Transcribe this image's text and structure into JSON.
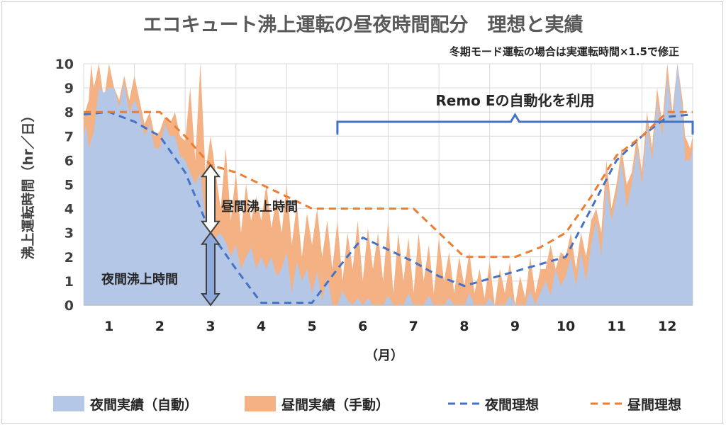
{
  "chart_data": {
    "type": "area",
    "title": "エコキュート沸上運転の昼夜時間配分　理想と実績",
    "note": "冬期モード運転の場合は実運転時間×1.5で修正",
    "ylabel": "沸上運転時間（hr／日）",
    "xlabel": "（月）",
    "ylim": [
      0,
      10
    ],
    "yticks": [
      "0",
      "1",
      "2",
      "3",
      "4",
      "5",
      "6",
      "7",
      "8",
      "9",
      "10"
    ],
    "xlim": [
      0.5,
      12.5
    ],
    "categories": [
      "1",
      "2",
      "3",
      "4",
      "5",
      "6",
      "7",
      "8",
      "9",
      "10",
      "11",
      "12"
    ],
    "annotations": {
      "remo": "Remo Eの自動化を利用",
      "remo_range": [
        5.5,
        12.5
      ],
      "day_arrow": "昼間沸上時間",
      "night_arrow": "夜間沸上時間",
      "day_arrow_range": [
        3,
        5.8
      ],
      "night_arrow_range": [
        0,
        3
      ]
    },
    "series": [
      {
        "name": "夜間実績（自動）",
        "kind": "area",
        "color": "#b4c7e7",
        "points": [
          [
            0.5,
            7
          ],
          [
            0.55,
            7.5
          ],
          [
            0.6,
            6.5
          ],
          [
            0.7,
            7.2
          ],
          [
            0.8,
            9
          ],
          [
            0.9,
            8.8
          ],
          [
            1,
            9
          ],
          [
            1.1,
            9
          ],
          [
            1.2,
            8.2
          ],
          [
            1.3,
            9.2
          ],
          [
            1.4,
            8
          ],
          [
            1.5,
            8.5
          ],
          [
            1.6,
            8
          ],
          [
            1.7,
            7
          ],
          [
            1.8,
            7.5
          ],
          [
            1.9,
            6.5
          ],
          [
            2,
            6.5
          ],
          [
            2.1,
            7.5
          ],
          [
            2.2,
            7
          ],
          [
            2.3,
            7
          ],
          [
            2.4,
            6.2
          ],
          [
            2.5,
            6
          ],
          [
            2.6,
            5.5
          ],
          [
            2.7,
            5
          ],
          [
            2.8,
            5.5
          ],
          [
            2.9,
            3.5
          ],
          [
            3,
            3
          ],
          [
            3.1,
            2.8
          ],
          [
            3.2,
            3
          ],
          [
            3.3,
            2.6
          ],
          [
            3.4,
            2
          ],
          [
            3.5,
            2.5
          ],
          [
            3.6,
            1.5
          ],
          [
            3.7,
            2
          ],
          [
            3.8,
            2.4
          ],
          [
            3.9,
            1.5
          ],
          [
            4,
            2
          ],
          [
            4.1,
            1.5
          ],
          [
            4.2,
            2
          ],
          [
            4.3,
            1.2
          ],
          [
            4.4,
            1.5
          ],
          [
            4.5,
            2.2
          ],
          [
            4.6,
            0.5
          ],
          [
            4.7,
            1.8
          ],
          [
            4.8,
            1
          ],
          [
            4.9,
            1.5
          ],
          [
            5,
            0.5
          ],
          [
            5.1,
            1.4
          ],
          [
            5.2,
            0.2
          ],
          [
            5.3,
            1.2
          ],
          [
            5.4,
            0
          ],
          [
            5.5,
            0
          ],
          [
            5.6,
            0.6
          ],
          [
            5.7,
            0.2
          ],
          [
            5.8,
            0
          ],
          [
            5.9,
            0.3
          ],
          [
            6,
            0
          ],
          [
            6.1,
            0.3
          ],
          [
            6.2,
            0
          ],
          [
            6.4,
            0
          ],
          [
            6.5,
            0.4
          ],
          [
            6.6,
            0
          ],
          [
            6.8,
            0
          ],
          [
            6.9,
            0.5
          ],
          [
            7,
            0
          ],
          [
            7.2,
            0
          ],
          [
            7.3,
            0.4
          ],
          [
            7.4,
            0
          ],
          [
            7.6,
            0
          ],
          [
            7.7,
            0.3
          ],
          [
            7.8,
            0
          ],
          [
            8,
            0
          ],
          [
            8.1,
            0.5
          ],
          [
            8.2,
            0
          ],
          [
            8.4,
            0
          ],
          [
            8.5,
            0.3
          ],
          [
            8.6,
            0
          ],
          [
            8.8,
            0
          ],
          [
            8.9,
            0.4
          ],
          [
            9,
            0
          ],
          [
            9.2,
            0
          ],
          [
            9.3,
            0.6
          ],
          [
            9.4,
            0
          ],
          [
            9.6,
            1
          ],
          [
            9.7,
            0.4
          ],
          [
            9.8,
            1.5
          ],
          [
            9.9,
            0.8
          ],
          [
            10,
            1.2
          ],
          [
            10.1,
            2
          ],
          [
            10.2,
            0.8
          ],
          [
            10.3,
            2.2
          ],
          [
            10.4,
            1
          ],
          [
            10.5,
            2.5
          ],
          [
            10.6,
            3.5
          ],
          [
            10.7,
            2
          ],
          [
            10.8,
            5
          ],
          [
            10.9,
            3.5
          ],
          [
            11,
            4.5
          ],
          [
            11.1,
            6
          ],
          [
            11.2,
            4
          ],
          [
            11.3,
            5
          ],
          [
            11.4,
            6.5
          ],
          [
            11.5,
            5
          ],
          [
            11.6,
            7.5
          ],
          [
            11.7,
            6
          ],
          [
            11.8,
            8.5
          ],
          [
            11.9,
            7
          ],
          [
            12,
            9.5
          ],
          [
            12.1,
            7.5
          ],
          [
            12.2,
            10
          ],
          [
            12.3,
            8
          ],
          [
            12.35,
            6
          ],
          [
            12.45,
            6
          ],
          [
            12.5,
            6.5
          ]
        ]
      },
      {
        "name": "昼間実績（手動）",
        "kind": "area",
        "color": "#f4b183",
        "points": [
          [
            0.5,
            7.8
          ],
          [
            0.6,
            8.5
          ],
          [
            0.65,
            10
          ],
          [
            0.7,
            9
          ],
          [
            0.8,
            10
          ],
          [
            0.9,
            8.5
          ],
          [
            1,
            10
          ],
          [
            1.1,
            9
          ],
          [
            1.2,
            8.5
          ],
          [
            1.3,
            9.5
          ],
          [
            1.4,
            8.5
          ],
          [
            1.5,
            9.5
          ],
          [
            1.6,
            8.5
          ],
          [
            1.7,
            7.5
          ],
          [
            1.8,
            8
          ],
          [
            1.9,
            7
          ],
          [
            2,
            7.2
          ],
          [
            2.1,
            7.8
          ],
          [
            2.2,
            7.5
          ],
          [
            2.3,
            8
          ],
          [
            2.4,
            7
          ],
          [
            2.5,
            6.8
          ],
          [
            2.6,
            9
          ],
          [
            2.7,
            6
          ],
          [
            2.8,
            10
          ],
          [
            2.9,
            5.5
          ],
          [
            3,
            7
          ],
          [
            3.1,
            5.5
          ],
          [
            3.2,
            4
          ],
          [
            3.3,
            6.5
          ],
          [
            3.4,
            3.5
          ],
          [
            3.5,
            5.5
          ],
          [
            3.6,
            3
          ],
          [
            3.7,
            5
          ],
          [
            3.8,
            3.5
          ],
          [
            3.9,
            4.5
          ],
          [
            4,
            3.5
          ],
          [
            4.1,
            5
          ],
          [
            4.2,
            3.2
          ],
          [
            4.3,
            4.5
          ],
          [
            4.4,
            3
          ],
          [
            4.5,
            5
          ],
          [
            4.6,
            2.5
          ],
          [
            4.7,
            4.2
          ],
          [
            4.8,
            2
          ],
          [
            4.9,
            3.8
          ],
          [
            5,
            2.5
          ],
          [
            5.1,
            4
          ],
          [
            5.2,
            2
          ],
          [
            5.3,
            3.5
          ],
          [
            5.4,
            1.5
          ],
          [
            5.5,
            3.5
          ],
          [
            5.6,
            1
          ],
          [
            5.7,
            3
          ],
          [
            5.8,
            1.5
          ],
          [
            5.9,
            3.5
          ],
          [
            6,
            1
          ],
          [
            6.1,
            3.2
          ],
          [
            6.2,
            1.5
          ],
          [
            6.3,
            3
          ],
          [
            6.4,
            1
          ],
          [
            6.5,
            3.5
          ],
          [
            6.6,
            0.5
          ],
          [
            6.7,
            3
          ],
          [
            6.8,
            1
          ],
          [
            6.9,
            2.8
          ],
          [
            7,
            0.5
          ],
          [
            7.1,
            3
          ],
          [
            7.2,
            1
          ],
          [
            7.3,
            2.5
          ],
          [
            7.4,
            0.5
          ],
          [
            7.5,
            2.8
          ],
          [
            7.6,
            1
          ],
          [
            7.7,
            2.2
          ],
          [
            7.8,
            0.5
          ],
          [
            7.9,
            2
          ],
          [
            8,
            0.8
          ],
          [
            8.1,
            2.2
          ],
          [
            8.2,
            0.5
          ],
          [
            8.3,
            1.5
          ],
          [
            8.4,
            0.3
          ],
          [
            8.5,
            1.8
          ],
          [
            8.6,
            0
          ],
          [
            8.7,
            1.5
          ],
          [
            8.8,
            0.5
          ],
          [
            8.9,
            1.8
          ],
          [
            9,
            0
          ],
          [
            9.1,
            1.2
          ],
          [
            9.2,
            0.3
          ],
          [
            9.3,
            2
          ],
          [
            9.4,
            0.5
          ],
          [
            9.5,
            1.5
          ],
          [
            9.6,
            1.5
          ],
          [
            9.7,
            2.5
          ],
          [
            9.8,
            1.5
          ],
          [
            9.9,
            2.2
          ],
          [
            10,
            2
          ],
          [
            10.1,
            3
          ],
          [
            10.2,
            1.5
          ],
          [
            10.3,
            3
          ],
          [
            10.4,
            2
          ],
          [
            10.5,
            3.5
          ],
          [
            10.6,
            4
          ],
          [
            10.7,
            3
          ],
          [
            10.8,
            6
          ],
          [
            10.9,
            4
          ],
          [
            11,
            5
          ],
          [
            11.1,
            6.5
          ],
          [
            11.2,
            5
          ],
          [
            11.3,
            5.5
          ],
          [
            11.4,
            7
          ],
          [
            11.5,
            5.5
          ],
          [
            11.6,
            8
          ],
          [
            11.7,
            6.5
          ],
          [
            11.8,
            9
          ],
          [
            11.9,
            7.5
          ],
          [
            12,
            10
          ],
          [
            12.1,
            8
          ],
          [
            12.2,
            10
          ],
          [
            12.3,
            8.5
          ],
          [
            12.35,
            7
          ],
          [
            12.45,
            6.5
          ],
          [
            12.5,
            7
          ]
        ]
      },
      {
        "name": "夜間理想",
        "kind": "dashed-line",
        "color": "#4472c4",
        "points": [
          [
            0.5,
            7.9
          ],
          [
            1,
            8
          ],
          [
            1.5,
            7.6
          ],
          [
            2,
            7
          ],
          [
            2.5,
            5.5
          ],
          [
            3,
            3
          ],
          [
            3.5,
            1.5
          ],
          [
            4,
            0.1
          ],
          [
            4.5,
            0.1
          ],
          [
            5,
            0.1
          ],
          [
            5.5,
            1.5
          ],
          [
            6,
            2.8
          ],
          [
            6.5,
            2.3
          ],
          [
            7,
            1.8
          ],
          [
            7.5,
            1.2
          ],
          [
            8,
            0.8
          ],
          [
            8.5,
            1.1
          ],
          [
            9,
            1.4
          ],
          [
            9.5,
            1.7
          ],
          [
            10,
            2
          ],
          [
            10.5,
            4
          ],
          [
            11,
            6
          ],
          [
            11.5,
            7
          ],
          [
            12,
            7.8
          ],
          [
            12.5,
            7.9
          ]
        ]
      },
      {
        "name": "昼間理想",
        "kind": "dashed-line",
        "color": "#ed7d31",
        "points": [
          [
            0.5,
            8
          ],
          [
            1,
            8
          ],
          [
            1.5,
            8
          ],
          [
            2,
            8
          ],
          [
            2.5,
            7
          ],
          [
            3,
            5.8
          ],
          [
            3.5,
            5.5
          ],
          [
            4,
            5
          ],
          [
            4.5,
            4.5
          ],
          [
            5,
            4
          ],
          [
            5.5,
            4
          ],
          [
            6,
            4
          ],
          [
            6.5,
            4
          ],
          [
            7,
            4
          ],
          [
            7.5,
            3
          ],
          [
            8,
            2
          ],
          [
            8.5,
            2
          ],
          [
            9,
            2
          ],
          [
            9.5,
            2.4
          ],
          [
            10,
            3
          ],
          [
            10.5,
            4.5
          ],
          [
            11,
            6.2
          ],
          [
            11.5,
            7
          ],
          [
            12,
            8
          ],
          [
            12.5,
            8
          ]
        ]
      }
    ]
  }
}
